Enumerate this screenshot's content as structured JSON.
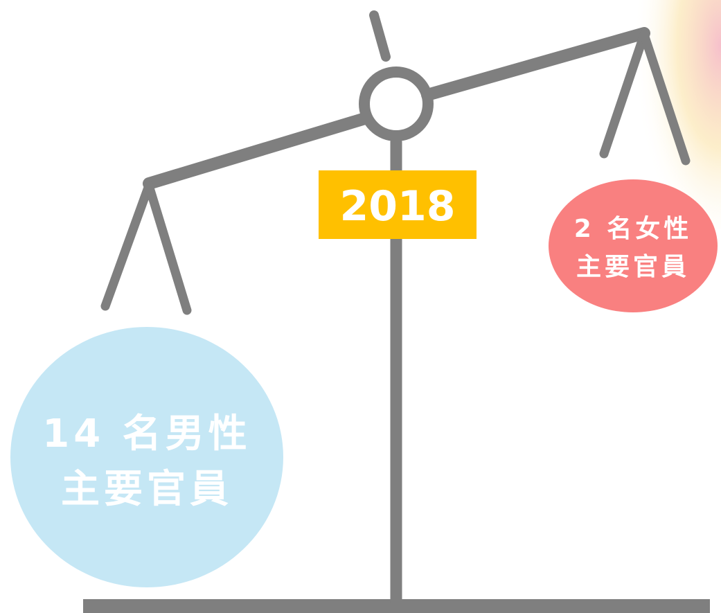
{
  "year": "2018",
  "left_pan": {
    "line1": "14 名男性",
    "line2": "主要官員"
  },
  "right_pan": {
    "line1": "2 名女性",
    "line2": "主要官員"
  }
}
